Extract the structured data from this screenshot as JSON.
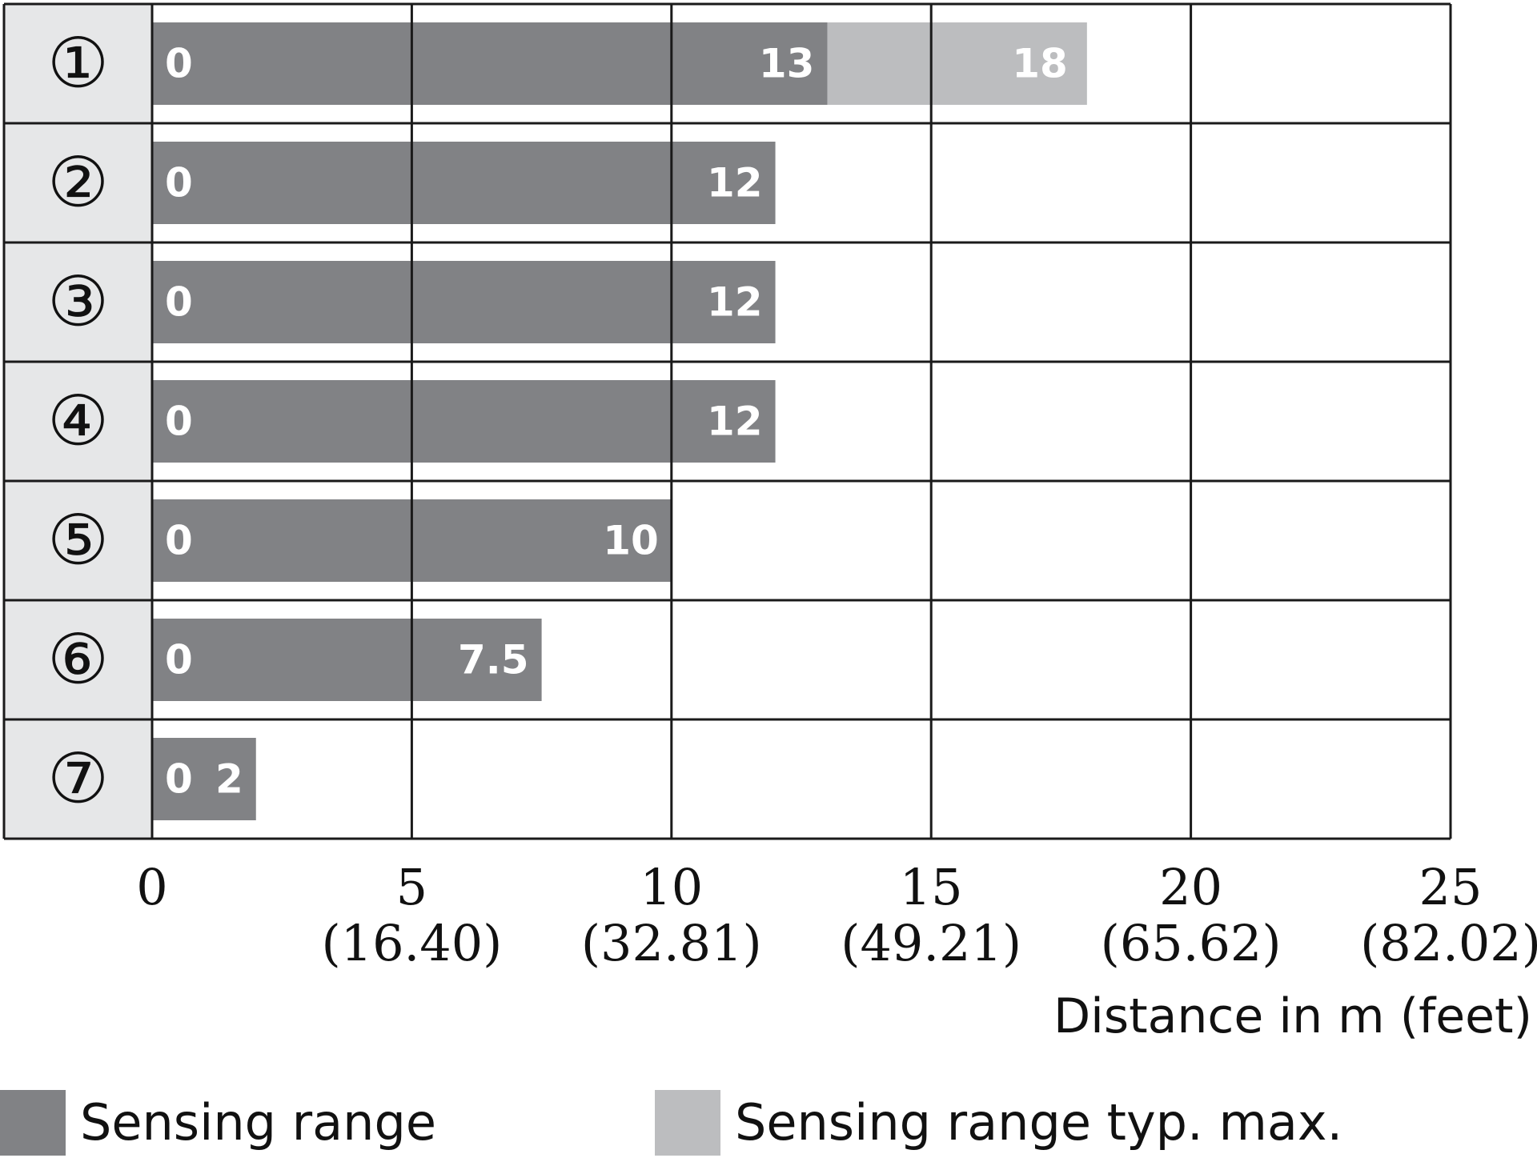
{
  "chart_data": {
    "type": "bar",
    "orientation": "horizontal",
    "categories": [
      "①",
      "②",
      "③",
      "④",
      "⑤",
      "⑥",
      "⑦"
    ],
    "series": [
      {
        "name": "Sensing range",
        "values": [
          13,
          12,
          12,
          12,
          10,
          7.5,
          2
        ],
        "color": "#818285"
      },
      {
        "name": "Sensing range typ. max.",
        "values": [
          18,
          null,
          null,
          null,
          null,
          null,
          null
        ],
        "color": "#bcbdbf"
      }
    ],
    "start_labels": [
      "0",
      "0",
      "0",
      "0",
      "0",
      "0",
      "0"
    ],
    "end_labels": [
      "13",
      "12",
      "12",
      "12",
      "10",
      "7.5",
      "2"
    ],
    "max_labels": [
      "18",
      "",
      "",
      "",
      "",
      "",
      ""
    ],
    "xlim": [
      0,
      25
    ],
    "x_ticks": [
      {
        "value": 0,
        "label": "0",
        "sublabel": ""
      },
      {
        "value": 5,
        "label": "5",
        "sublabel": "(16.40)"
      },
      {
        "value": 10,
        "label": "10",
        "sublabel": "(32.81)"
      },
      {
        "value": 15,
        "label": "15",
        "sublabel": "(49.21)"
      },
      {
        "value": 20,
        "label": "20",
        "sublabel": "(65.62)"
      },
      {
        "value": 25,
        "label": "25",
        "sublabel": "(82.02)"
      }
    ],
    "xlabel": "Distance in m (feet)",
    "grid": true,
    "legend": {
      "placement": "bottom",
      "entries": [
        {
          "label": "Sensing range",
          "color": "#818285"
        },
        {
          "label": "Sensing range typ. max.",
          "color": "#bcbdbf"
        }
      ]
    },
    "colors": {
      "grid": "#1a1a1a",
      "label_column": "#e6e7e8"
    }
  }
}
